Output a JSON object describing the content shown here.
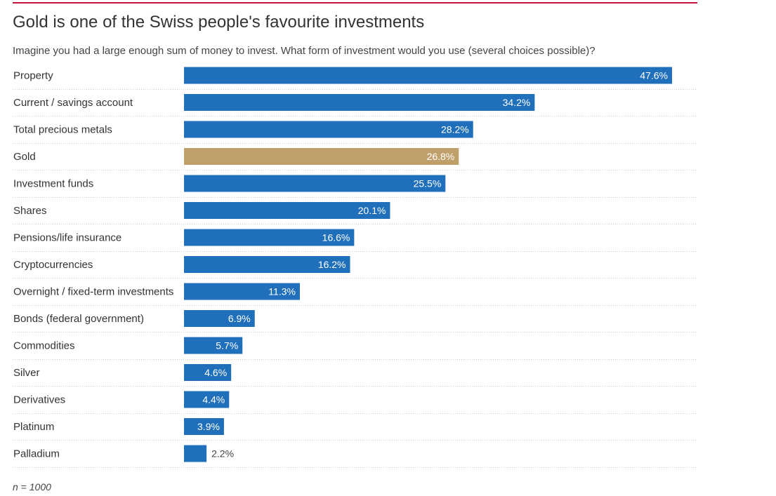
{
  "header": {
    "title": "Gold is one of the Swiss people's favourite investments",
    "subtitle": "Imagine you had a large enough sum of money to invest. What form of investment would you use (several choices possible)?"
  },
  "footer": {
    "note": "n = 1000"
  },
  "colors": {
    "bar": "#1f6fbb",
    "highlight": "#bf9f6a",
    "rule": "#c0143c",
    "grid": "#cccccc"
  },
  "chart_data": {
    "type": "bar",
    "orientation": "horizontal",
    "categories": [
      "Property",
      "Current / savings account",
      "Total precious metals",
      "Gold",
      "Investment funds",
      "Shares",
      "Pensions/life insurance",
      "Cryptocurrencies",
      "Overnight / fixed-term investments",
      "Bonds (federal government)",
      "Commodities",
      "Silver",
      "Derivatives",
      "Platinum",
      "Palladium"
    ],
    "values": [
      47.6,
      34.2,
      28.2,
      26.8,
      25.5,
      20.1,
      16.6,
      16.2,
      11.3,
      6.9,
      5.7,
      4.6,
      4.4,
      3.9,
      2.2
    ],
    "value_labels": [
      "47.6%",
      "34.2%",
      "28.2%",
      "26.8%",
      "25.5%",
      "20.1%",
      "16.6%",
      "16.2%",
      "11.3%",
      "6.9%",
      "5.7%",
      "4.6%",
      "4.4%",
      "3.9%",
      "2.2%"
    ],
    "highlighted_category": "Gold",
    "unit": "%",
    "xlim": [
      0,
      50
    ],
    "grid": false
  }
}
